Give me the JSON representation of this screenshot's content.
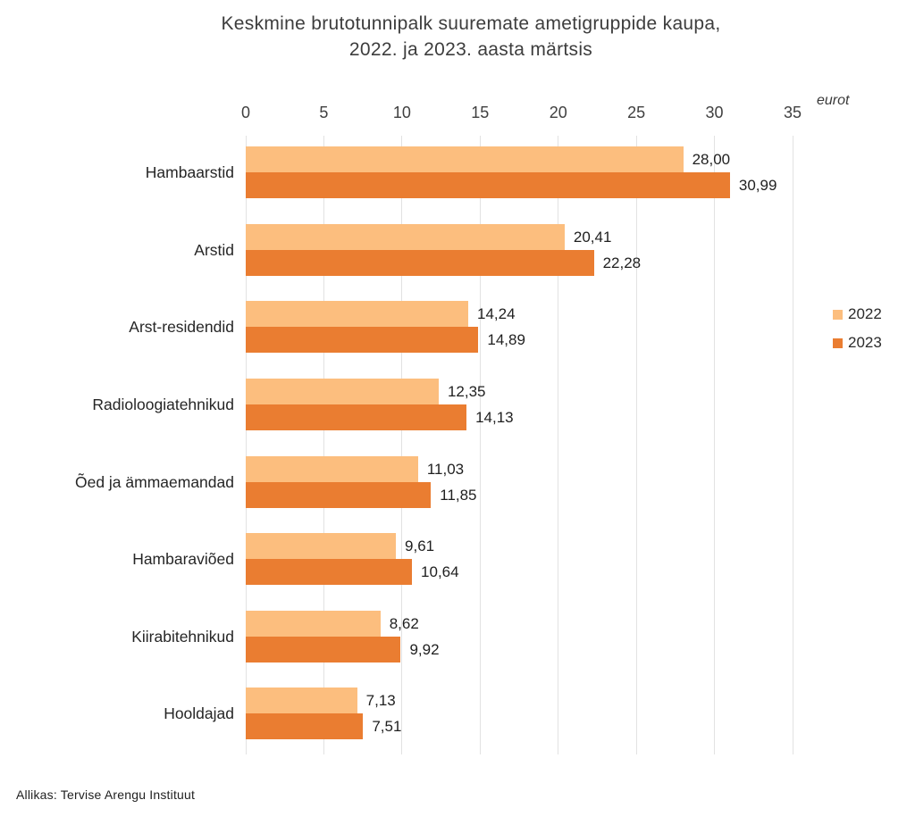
{
  "title": {
    "line1": "Keskmine brutotunnipalk suuremate ametigruppide kaupa,",
    "line2": "2022. ja 2023. aasta märtsis"
  },
  "footer": {
    "source": "Allikas: Tervise Arengu Instituut"
  },
  "chart_data": {
    "type": "bar",
    "orientation": "horizontal",
    "title": "Keskmine brutotunnipalk suuremate ametigruppide kaupa, 2022. ja 2023. aasta märtsis",
    "unit_label": "eurot",
    "xlim": [
      0,
      35
    ],
    "xticks": [
      0,
      5,
      10,
      15,
      20,
      25,
      30,
      35
    ],
    "grid": "vertical",
    "legend_position": "right",
    "decimal_separator": ",",
    "categories": [
      "Hambaarstid",
      "Arstid",
      "Arst-residendid",
      "Radioloogiatehnikud",
      "Õed ja ämmaemandad",
      "Hambaraviõed",
      "Kiirabitehnikud",
      "Hooldajad"
    ],
    "series": [
      {
        "name": "2022",
        "color": "#FCBE7E",
        "values": [
          28.0,
          20.41,
          14.24,
          12.35,
          11.03,
          9.61,
          8.62,
          7.13
        ],
        "value_labels": [
          "28,00",
          "20,41",
          "14,24",
          "12,35",
          "11,03",
          "9,61",
          "8,62",
          "7,13"
        ]
      },
      {
        "name": "2023",
        "color": "#EA7D31",
        "values": [
          30.99,
          22.28,
          14.89,
          14.13,
          11.85,
          10.64,
          9.92,
          7.51
        ],
        "value_labels": [
          "30,99",
          "22,28",
          "14,89",
          "14,13",
          "11,85",
          "10,64",
          "9,92",
          "7,51"
        ]
      }
    ]
  }
}
